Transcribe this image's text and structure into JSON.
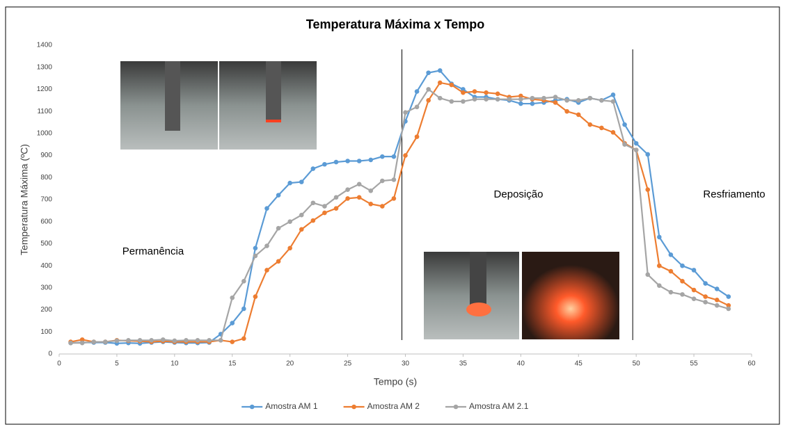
{
  "chart_data": {
    "type": "line",
    "title": "Temperatura Máxima x Tempo",
    "x_label": "Tempo (s)",
    "y_label": "Temperatura Máxima (ºC)",
    "annotations": [
      "Permanência",
      "Deposição",
      "Resfriamento"
    ],
    "phase_lines": [
      29.7,
      49.7
    ],
    "x": [
      1,
      2,
      3,
      4,
      5,
      6,
      7,
      8,
      9,
      10,
      11,
      12,
      13,
      14,
      15,
      16,
      17,
      18,
      19,
      20,
      21,
      22,
      23,
      24,
      25,
      26,
      27,
      28,
      29,
      30,
      31,
      32,
      33,
      34,
      35,
      36,
      37,
      38,
      39,
      40,
      41,
      42,
      43,
      44,
      45,
      46,
      47,
      48,
      49,
      50,
      51,
      52,
      53,
      54,
      55,
      56,
      57,
      58
    ],
    "series": [
      {
        "name": "Amostra AM 1",
        "color": "#5b9bd5",
        "values": [
          50,
          52,
          52,
          52,
          48,
          50,
          48,
          52,
          55,
          52,
          50,
          50,
          52,
          90,
          140,
          205,
          480,
          660,
          720,
          775,
          780,
          840,
          860,
          870,
          875,
          875,
          880,
          895,
          895,
          1055,
          1190,
          1275,
          1285,
          1225,
          1200,
          1165,
          1165,
          1155,
          1150,
          1135,
          1135,
          1140,
          1150,
          1155,
          1140,
          1160,
          1150,
          1175,
          1040,
          955,
          905,
          530,
          450,
          400,
          380,
          320,
          295,
          260
        ]
      },
      {
        "name": "Amostra AM 2",
        "color": "#ed7d31",
        "values": [
          55,
          65,
          55,
          55,
          62,
          60,
          58,
          55,
          58,
          55,
          55,
          55,
          55,
          62,
          55,
          70,
          260,
          380,
          420,
          480,
          565,
          605,
          640,
          660,
          705,
          710,
          680,
          670,
          705,
          900,
          985,
          1150,
          1230,
          1220,
          1185,
          1190,
          1185,
          1180,
          1165,
          1170,
          1155,
          1150,
          1140,
          1100,
          1085,
          1040,
          1025,
          1005,
          955,
          925,
          745,
          400,
          375,
          330,
          290,
          260,
          245,
          220
        ]
      },
      {
        "name": "Amostra AM 2.1",
        "color": "#a5a5a5",
        "values": [
          50,
          50,
          55,
          55,
          60,
          62,
          62,
          62,
          65,
          60,
          62,
          62,
          62,
          62,
          255,
          330,
          445,
          490,
          570,
          600,
          630,
          685,
          670,
          710,
          745,
          770,
          740,
          785,
          790,
          1095,
          1120,
          1200,
          1160,
          1145,
          1145,
          1155,
          1155,
          1155,
          1155,
          1155,
          1160,
          1160,
          1165,
          1150,
          1150,
          1160,
          1150,
          1145,
          950,
          925,
          360,
          310,
          280,
          270,
          250,
          235,
          220,
          205
        ]
      }
    ],
    "xlim": [
      0,
      60
    ],
    "xticks": [
      0,
      5,
      10,
      15,
      20,
      25,
      30,
      35,
      40,
      45,
      50,
      55,
      60
    ],
    "ylim": [
      0,
      1400
    ],
    "yticks": [
      0,
      100,
      200,
      300,
      400,
      500,
      600,
      700,
      800,
      900,
      1000,
      1100,
      1200,
      1300,
      1400
    ],
    "grid": false,
    "legend": "bottom"
  }
}
